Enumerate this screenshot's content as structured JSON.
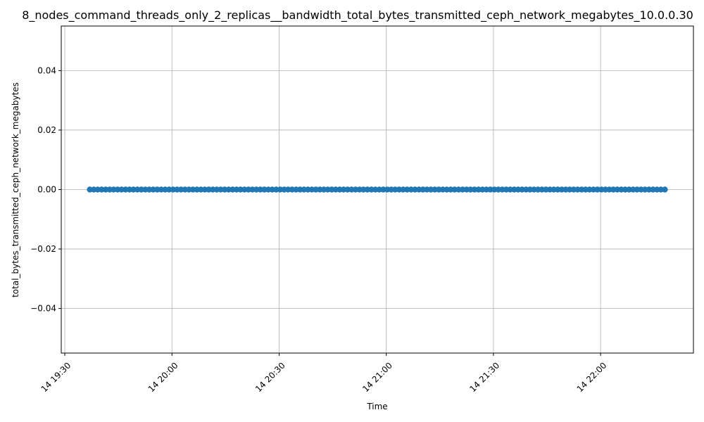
{
  "chart_data": {
    "type": "scatter",
    "title": "8_nodes_command_threads_only_2_replicas__bandwidth_total_bytes_transmitted_ceph_network_megabytes_10.0.0.30",
    "xlabel": "Time",
    "ylabel": "total_bytes_transmitted_ceph_network_megabytes",
    "x_tick_labels": [
      "14 19:30",
      "14 20:00",
      "14 20:30",
      "14 21:00",
      "14 21:30",
      "14 22:00"
    ],
    "y_tick_labels": [
      "−0.04",
      "−0.02",
      "0.00",
      "0.02",
      "0.04"
    ],
    "y_ticks": [
      -0.04,
      -0.02,
      0.0,
      0.02,
      0.04
    ],
    "ylim": [
      -0.055,
      0.055
    ],
    "xlim": [
      "19:29",
      "22:26"
    ],
    "grid": true,
    "series": [
      {
        "color": "#1f77b4",
        "x_start": "19:37",
        "x_end": "22:18",
        "point_count": 146,
        "y": 0.0
      }
    ]
  }
}
